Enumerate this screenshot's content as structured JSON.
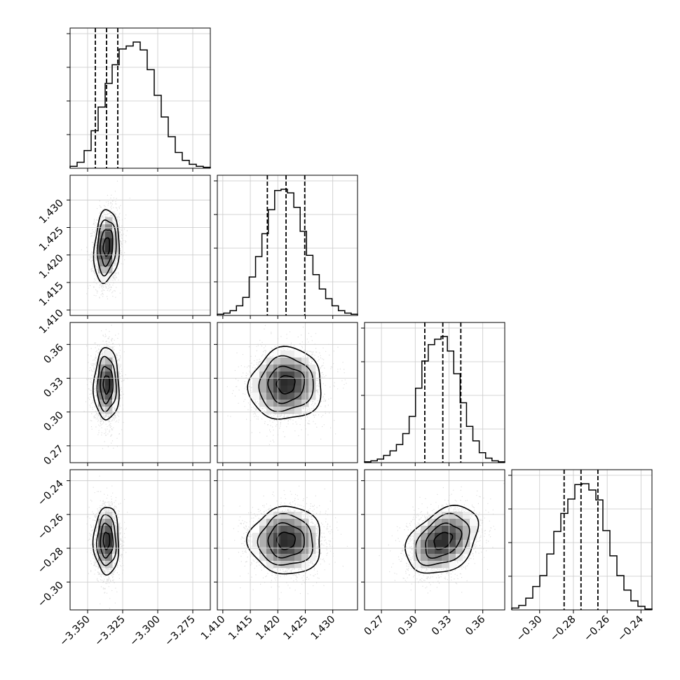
{
  "chart_data": {
    "type": "corner",
    "grid": true,
    "params": [
      {
        "ticks": [
          -3.35,
          -3.325,
          -3.3,
          -3.275
        ],
        "tick_labels": [
          "−3.350",
          "−3.325",
          "−3.300",
          "−3.275"
        ],
        "range": [
          -3.3625,
          -3.2625
        ],
        "quantiles": [
          -3.3445,
          -3.3365,
          -3.3285
        ],
        "median": -3.3365,
        "sd": 0.0045
      },
      {
        "ticks": [
          1.41,
          1.415,
          1.42,
          1.425,
          1.43
        ],
        "tick_labels": [
          "1.410",
          "1.415",
          "1.420",
          "1.425",
          "1.430"
        ],
        "range": [
          1.409,
          1.4345
        ],
        "quantiles": [
          1.4181,
          1.4215,
          1.4249
        ],
        "median": 1.4215,
        "sd": 0.0033
      },
      {
        "ticks": [
          0.27,
          0.3,
          0.33,
          0.36
        ],
        "tick_labels": [
          "0.27",
          "0.30",
          "0.33",
          "0.36"
        ],
        "range": [
          0.255,
          0.3795
        ],
        "quantiles": [
          0.3085,
          0.3245,
          0.3405
        ],
        "median": 0.3245,
        "sd": 0.016
      },
      {
        "ticks": [
          -0.3,
          -0.28,
          -0.26,
          -0.24
        ],
        "tick_labels": [
          "−0.30",
          "−0.28",
          "−0.26",
          "−0.24"
        ],
        "range": [
          -0.3165,
          -0.2335
        ],
        "quantiles": [
          -0.2855,
          -0.2755,
          -0.2655
        ],
        "median": -0.2755,
        "sd": 0.01
      }
    ],
    "histograms": [
      [
        0.2,
        0.6,
        1.8,
        3.8,
        6.2,
        8.6,
        10.5,
        12.1,
        12.4,
        12.8,
        12.0,
        10.0,
        7.4,
        5.2,
        3.2,
        1.6,
        0.8,
        0.4,
        0.2,
        0.1
      ],
      [
        0.1,
        0.2,
        0.4,
        0.8,
        1.5,
        3.2,
        4.9,
        6.8,
        8.8,
        10.4,
        10.5,
        10.2,
        9.0,
        7.0,
        5.0,
        3.4,
        2.2,
        1.4,
        0.8,
        0.4,
        0.2,
        0.1
      ],
      [
        0.1,
        0.2,
        0.4,
        0.8,
        1.3,
        2.0,
        3.2,
        5.1,
        8.2,
        11.2,
        13.0,
        13.6,
        13.9,
        12.3,
        9.8,
        6.6,
        4.0,
        2.4,
        1.1,
        0.5,
        0.2,
        0.1
      ],
      [
        0.2,
        0.5,
        1.3,
        2.6,
        3.8,
        6.2,
        8.7,
        10.7,
        12.3,
        13.9,
        14.0,
        13.3,
        12.2,
        8.8,
        6.0,
        3.8,
        2.2,
        1.0,
        0.4,
        0.1
      ]
    ],
    "correlations": {
      "1-0": 0.15,
      "2-0": 0.0,
      "2-1": 0.05,
      "3-0": 0.0,
      "3-1": 0.0,
      "3-2": 0.35
    }
  }
}
